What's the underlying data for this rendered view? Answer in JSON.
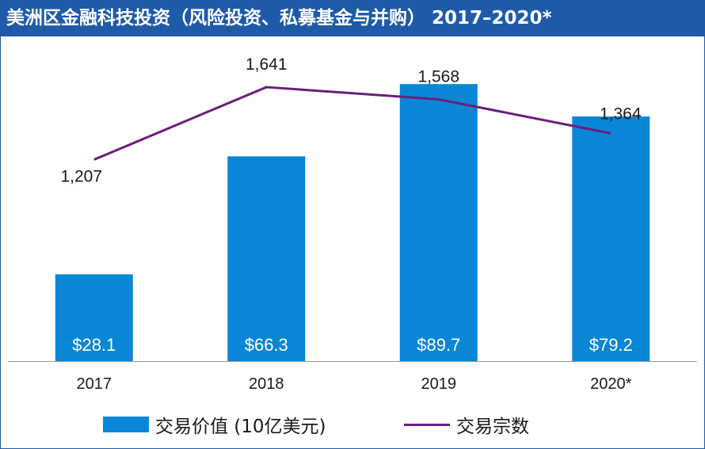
{
  "title": "美洲区金融科技投资（风险投资、私募基金与并购） 2017–2020*",
  "colors": {
    "title_bg": "#1e5aa8",
    "bar": "#0a86d6",
    "line": "#6a1f7a",
    "axis": "#999999"
  },
  "chart_data": {
    "type": "bar",
    "categories": [
      "2017",
      "2018",
      "2019",
      "2020*"
    ],
    "series": [
      {
        "name": "交易价值 (10亿美元)",
        "type": "bar",
        "values": [
          28.1,
          66.3,
          89.7,
          79.2
        ],
        "labels": [
          "$28.1",
          "$66.3",
          "$89.7",
          "$79.2"
        ]
      },
      {
        "name": "交易宗数",
        "type": "line",
        "values": [
          1207,
          1641,
          1568,
          1364
        ],
        "labels": [
          "1,207",
          "1,641",
          "1,568",
          "1,364"
        ]
      }
    ],
    "bar_axis_range": [
      0,
      100
    ],
    "line_axis_range": [
      0,
      1850
    ],
    "grid": false,
    "legend_position": "bottom"
  },
  "legend": {
    "bar_label": "交易价值 (10亿美元)",
    "line_label": "交易宗数"
  }
}
